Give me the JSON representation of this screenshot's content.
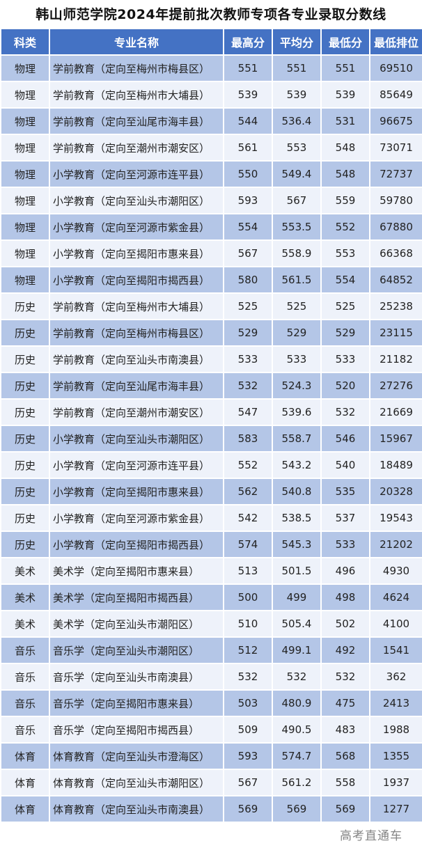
{
  "title": "韩山师范学院2024年提前批次教师专项各专业录取分数线",
  "headers": [
    "科类",
    "专业名称",
    "最高分",
    "平均分",
    "最低分",
    "最低排位"
  ],
  "rows": [
    [
      "物理",
      "学前教育（定向至梅州市梅县区）",
      "551",
      "551",
      "551",
      "69510"
    ],
    [
      "物理",
      "学前教育（定向至梅州市大埔县）",
      "539",
      "539",
      "539",
      "85649"
    ],
    [
      "物理",
      "学前教育（定向至汕尾市海丰县）",
      "544",
      "536.4",
      "531",
      "96675"
    ],
    [
      "物理",
      "学前教育（定向至潮州市潮安区）",
      "561",
      "553",
      "548",
      "73071"
    ],
    [
      "物理",
      "小学教育（定向至河源市连平县）",
      "550",
      "549.4",
      "548",
      "72737"
    ],
    [
      "物理",
      "小学教育（定向至汕头市潮阳区）",
      "593",
      "567",
      "559",
      "59780"
    ],
    [
      "物理",
      "小学教育（定向至河源市紫金县）",
      "554",
      "553.5",
      "552",
      "67880"
    ],
    [
      "物理",
      "小学教育（定向至揭阳市惠来县）",
      "567",
      "558.9",
      "553",
      "66368"
    ],
    [
      "物理",
      "小学教育（定向至揭阳市揭西县）",
      "580",
      "561.5",
      "554",
      "64852"
    ],
    [
      "历史",
      "学前教育（定向至梅州市大埔县）",
      "525",
      "525",
      "525",
      "25238"
    ],
    [
      "历史",
      "学前教育（定向至梅州市梅县区）",
      "529",
      "529",
      "529",
      "23115"
    ],
    [
      "历史",
      "学前教育（定向至汕头市南澳县）",
      "533",
      "533",
      "533",
      "21182"
    ],
    [
      "历史",
      "学前教育（定向至汕尾市海丰县）",
      "532",
      "524.3",
      "520",
      "27276"
    ],
    [
      "历史",
      "学前教育（定向至潮州市潮安区）",
      "547",
      "539.6",
      "532",
      "21669"
    ],
    [
      "历史",
      "小学教育（定向至汕头市潮阳区）",
      "583",
      "558.7",
      "546",
      "15967"
    ],
    [
      "历史",
      "小学教育（定向至河源市连平县）",
      "552",
      "543.2",
      "540",
      "18489"
    ],
    [
      "历史",
      "小学教育（定向至揭阳市惠来县）",
      "562",
      "540.8",
      "535",
      "20328"
    ],
    [
      "历史",
      "小学教育（定向至河源市紫金县）",
      "542",
      "538.5",
      "537",
      "19543"
    ],
    [
      "历史",
      "小学教育（定向至揭阳市揭西县）",
      "574",
      "545.3",
      "533",
      "21202"
    ],
    [
      "美术",
      "美术学（定向至揭阳市惠来县）",
      "513",
      "501.5",
      "496",
      "4930"
    ],
    [
      "美术",
      "美术学（定向至揭阳市揭西县）",
      "500",
      "499",
      "498",
      "4624"
    ],
    [
      "美术",
      "美术学（定向至汕头市潮阳区）",
      "510",
      "505.4",
      "502",
      "4100"
    ],
    [
      "音乐",
      "音乐学（定向至汕头市潮阳区）",
      "512",
      "499.1",
      "492",
      "1541"
    ],
    [
      "音乐",
      "音乐学（定向至汕头市南澳县）",
      "532",
      "532",
      "532",
      "362"
    ],
    [
      "音乐",
      "音乐学（定向至揭阳市惠来县）",
      "503",
      "480.9",
      "475",
      "2413"
    ],
    [
      "音乐",
      "音乐学（定向至揭阳市揭西县）",
      "509",
      "490.5",
      "483",
      "1988"
    ],
    [
      "体育",
      "体育教育（定向至汕头市澄海区）",
      "593",
      "574.7",
      "568",
      "1355"
    ],
    [
      "体育",
      "体育教育（定向至汕头市潮阳区）",
      "567",
      "561.2",
      "558",
      "1937"
    ],
    [
      "体育",
      "体育教育（定向至汕头市南澳县）",
      "569",
      "569",
      "569",
      "1277"
    ]
  ],
  "watermark": "高考直通车",
  "colors": {
    "header": "#4472C4",
    "row_alt_blue": "#B4C6E7",
    "row_alt_light": "#EEF2FA"
  }
}
